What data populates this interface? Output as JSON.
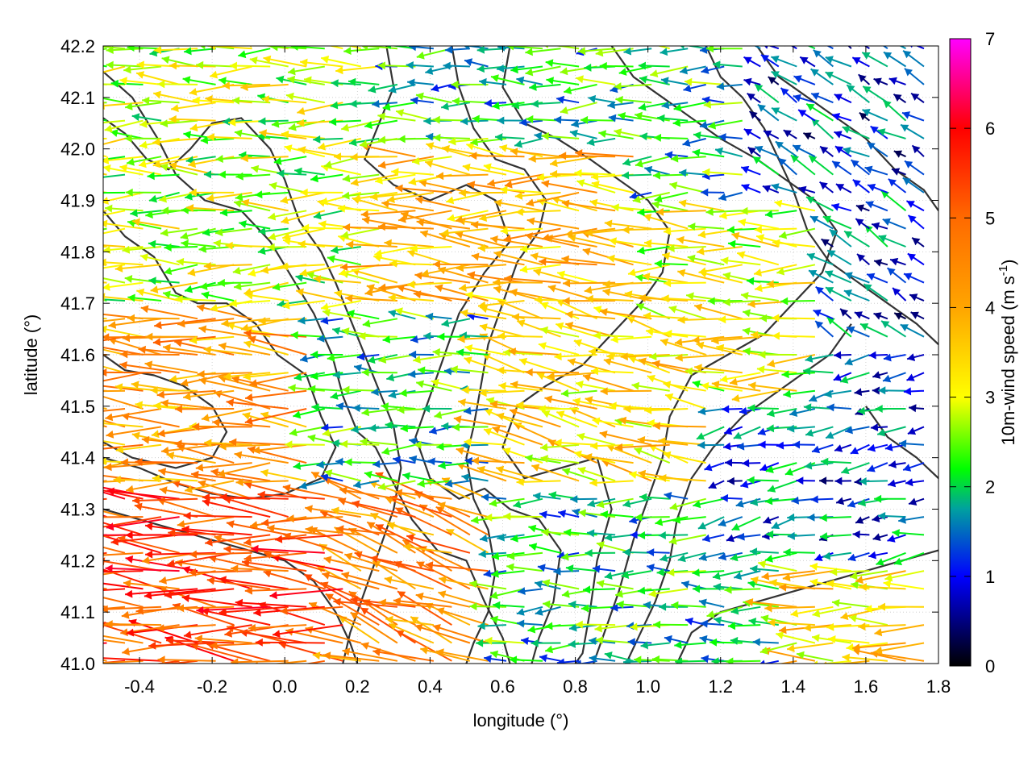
{
  "chart_data": {
    "type": "quiver",
    "title": "",
    "xlabel": "longitude (°)",
    "ylabel": "latitude (°)",
    "xlim": [
      -0.5,
      1.8
    ],
    "ylim": [
      41.0,
      42.2
    ],
    "xticks": [
      "-0.4",
      "-0.2",
      "0.0",
      "0.2",
      "0.4",
      "0.6",
      "0.8",
      "1.0",
      "1.2",
      "1.4",
      "1.6",
      "1.8"
    ],
    "xtick_values": [
      -0.4,
      -0.2,
      0.0,
      0.2,
      0.4,
      0.6,
      0.8,
      1.0,
      1.2,
      1.4,
      1.6,
      1.8
    ],
    "yticks": [
      "41.0",
      "41.1",
      "41.2",
      "41.3",
      "41.4",
      "41.5",
      "41.6",
      "41.7",
      "41.8",
      "41.9",
      "42.0",
      "42.1",
      "42.2"
    ],
    "ytick_values": [
      41.0,
      41.1,
      41.2,
      41.3,
      41.4,
      41.5,
      41.6,
      41.7,
      41.8,
      41.9,
      42.0,
      42.1,
      42.2
    ],
    "grid": true,
    "colorbar": {
      "label_main": "10m-wind speed (m s",
      "label_exp": "-1",
      "label_close": ")",
      "range": [
        0,
        7
      ],
      "ticks": [
        "0",
        "1",
        "2",
        "3",
        "4",
        "5",
        "6",
        "7"
      ],
      "tick_values": [
        0,
        1,
        2,
        3,
        4,
        5,
        6,
        7
      ],
      "colormap": [
        {
          "v": 0,
          "color": "#000000"
        },
        {
          "v": 1,
          "color": "#0000ff"
        },
        {
          "v": 1.75,
          "color": "#00a0a0"
        },
        {
          "v": 2.2,
          "color": "#00ff00"
        },
        {
          "v": 3,
          "color": "#ffff00"
        },
        {
          "v": 4,
          "color": "#ffa500"
        },
        {
          "v": 5,
          "color": "#ff6a00"
        },
        {
          "v": 6,
          "color": "#ff0000"
        },
        {
          "v": 7,
          "color": "#ff00ff"
        }
      ]
    },
    "contours": [
      {
        "name": "contour-1",
        "points": [
          [
            -0.5,
            42.15
          ],
          [
            -0.42,
            42.1
          ],
          [
            -0.35,
            42.02
          ],
          [
            -0.3,
            41.95
          ],
          [
            -0.22,
            41.9
          ],
          [
            -0.12,
            41.88
          ],
          [
            -0.04,
            41.82
          ],
          [
            0.02,
            41.75
          ],
          [
            0.08,
            41.68
          ],
          [
            0.13,
            41.6
          ],
          [
            0.16,
            41.52
          ],
          [
            0.2,
            41.45
          ],
          [
            0.25,
            41.42
          ],
          [
            0.3,
            41.35
          ],
          [
            0.35,
            41.28
          ],
          [
            0.42,
            41.22
          ],
          [
            0.5,
            41.2
          ],
          [
            0.55,
            41.12
          ],
          [
            0.6,
            41.05
          ],
          [
            0.62,
            41.0
          ]
        ]
      },
      {
        "name": "contour-2",
        "points": [
          [
            -0.5,
            41.88
          ],
          [
            -0.44,
            41.83
          ],
          [
            -0.36,
            41.79
          ],
          [
            -0.3,
            41.72
          ],
          [
            -0.24,
            41.7
          ],
          [
            -0.16,
            41.7
          ],
          [
            -0.08,
            41.66
          ],
          [
            -0.02,
            41.6
          ],
          [
            0.06,
            41.56
          ],
          [
            0.1,
            41.48
          ],
          [
            0.14,
            41.42
          ],
          [
            0.1,
            41.36
          ],
          [
            0.0,
            41.33
          ],
          [
            -0.1,
            41.32
          ],
          [
            -0.2,
            41.33
          ],
          [
            -0.3,
            41.35
          ],
          [
            -0.4,
            41.38
          ],
          [
            -0.5,
            41.4
          ]
        ]
      },
      {
        "name": "contour-3",
        "points": [
          [
            -0.5,
            41.6
          ],
          [
            -0.44,
            41.57
          ],
          [
            -0.36,
            41.56
          ],
          [
            -0.28,
            41.54
          ],
          [
            -0.2,
            41.5
          ],
          [
            -0.16,
            41.45
          ],
          [
            -0.2,
            41.4
          ],
          [
            -0.3,
            41.38
          ],
          [
            -0.42,
            41.4
          ],
          [
            -0.5,
            41.43
          ]
        ]
      },
      {
        "name": "contour-4",
        "points": [
          [
            0.28,
            42.2
          ],
          [
            0.3,
            42.12
          ],
          [
            0.26,
            42.05
          ],
          [
            0.22,
            41.98
          ],
          [
            0.3,
            41.93
          ],
          [
            0.4,
            41.9
          ],
          [
            0.5,
            41.93
          ],
          [
            0.58,
            41.9
          ],
          [
            0.62,
            41.82
          ],
          [
            0.55,
            41.76
          ],
          [
            0.48,
            41.68
          ],
          [
            0.44,
            41.6
          ],
          [
            0.4,
            41.52
          ],
          [
            0.36,
            41.44
          ],
          [
            0.4,
            41.36
          ],
          [
            0.48,
            41.32
          ],
          [
            0.55,
            41.34
          ],
          [
            0.62,
            41.3
          ],
          [
            0.7,
            41.28
          ],
          [
            0.76,
            41.22
          ],
          [
            0.74,
            41.12
          ],
          [
            0.7,
            41.05
          ],
          [
            0.68,
            41.0
          ]
        ]
      },
      {
        "name": "contour-5",
        "points": [
          [
            0.62,
            42.2
          ],
          [
            0.6,
            42.12
          ],
          [
            0.66,
            42.05
          ],
          [
            0.75,
            42.02
          ],
          [
            0.84,
            41.98
          ],
          [
            0.92,
            41.94
          ],
          [
            1.0,
            41.9
          ],
          [
            1.06,
            41.84
          ],
          [
            1.04,
            41.76
          ],
          [
            0.98,
            41.7
          ],
          [
            0.9,
            41.64
          ],
          [
            0.82,
            41.58
          ],
          [
            0.72,
            41.54
          ],
          [
            0.64,
            41.5
          ],
          [
            0.6,
            41.42
          ],
          [
            0.66,
            41.36
          ],
          [
            0.76,
            41.38
          ],
          [
            0.86,
            41.4
          ],
          [
            0.9,
            41.3
          ],
          [
            0.86,
            41.2
          ],
          [
            0.84,
            41.1
          ],
          [
            0.82,
            41.02
          ],
          [
            0.8,
            41.0
          ]
        ]
      },
      {
        "name": "contour-6",
        "points": [
          [
            0.9,
            42.2
          ],
          [
            0.96,
            42.14
          ],
          [
            1.04,
            42.1
          ],
          [
            1.12,
            42.06
          ],
          [
            1.2,
            42.02
          ],
          [
            1.3,
            41.98
          ],
          [
            1.38,
            41.94
          ],
          [
            1.46,
            41.9
          ],
          [
            1.52,
            41.84
          ],
          [
            1.48,
            41.76
          ],
          [
            1.4,
            41.7
          ],
          [
            1.32,
            41.64
          ],
          [
            1.22,
            41.6
          ],
          [
            1.12,
            41.56
          ],
          [
            1.06,
            41.48
          ],
          [
            1.04,
            41.4
          ],
          [
            1.0,
            41.32
          ],
          [
            0.96,
            41.24
          ],
          [
            0.92,
            41.14
          ],
          [
            0.88,
            41.06
          ],
          [
            0.85,
            41.0
          ]
        ]
      },
      {
        "name": "contour-7",
        "points": [
          [
            1.3,
            42.2
          ],
          [
            1.36,
            42.14
          ],
          [
            1.44,
            42.1
          ],
          [
            1.52,
            42.06
          ],
          [
            1.6,
            42.02
          ],
          [
            1.68,
            41.96
          ],
          [
            1.76,
            41.92
          ],
          [
            1.8,
            41.88
          ]
        ]
      },
      {
        "name": "contour-8",
        "points": [
          [
            1.6,
            41.5
          ],
          [
            1.66,
            41.44
          ],
          [
            1.74,
            41.4
          ],
          [
            1.8,
            41.36
          ]
        ]
      },
      {
        "name": "contour-9",
        "points": [
          [
            1.08,
            41.0
          ],
          [
            1.12,
            41.06
          ],
          [
            1.2,
            41.1
          ],
          [
            1.3,
            41.12
          ],
          [
            1.4,
            41.14
          ],
          [
            1.5,
            41.16
          ],
          [
            1.6,
            41.18
          ],
          [
            1.7,
            41.2
          ],
          [
            1.8,
            41.22
          ]
        ]
      },
      {
        "name": "contour-10",
        "points": [
          [
            -0.5,
            42.06
          ],
          [
            -0.44,
            42.03
          ],
          [
            -0.38,
            41.98
          ],
          [
            -0.32,
            41.96
          ],
          [
            -0.26,
            42.0
          ],
          [
            -0.2,
            42.05
          ],
          [
            -0.12,
            42.06
          ],
          [
            -0.04,
            42.0
          ],
          [
            0.0,
            41.94
          ],
          [
            0.04,
            41.86
          ],
          [
            0.1,
            41.8
          ],
          [
            0.14,
            41.74
          ],
          [
            0.18,
            41.67
          ],
          [
            0.22,
            41.6
          ],
          [
            0.26,
            41.53
          ],
          [
            0.3,
            41.46
          ],
          [
            0.32,
            41.38
          ],
          [
            0.3,
            41.3
          ],
          [
            0.26,
            41.22
          ],
          [
            0.22,
            41.14
          ],
          [
            0.18,
            41.06
          ],
          [
            0.16,
            41.0
          ]
        ]
      },
      {
        "name": "contour-11",
        "points": [
          [
            0.46,
            42.2
          ],
          [
            0.48,
            42.12
          ],
          [
            0.52,
            42.04
          ],
          [
            0.58,
            41.98
          ],
          [
            0.66,
            41.96
          ],
          [
            0.72,
            41.9
          ],
          [
            0.7,
            41.84
          ],
          [
            0.64,
            41.78
          ],
          [
            0.6,
            41.7
          ],
          [
            0.56,
            41.62
          ],
          [
            0.54,
            41.54
          ],
          [
            0.52,
            41.46
          ],
          [
            0.5,
            41.4
          ],
          [
            0.52,
            41.32
          ],
          [
            0.56,
            41.26
          ],
          [
            0.58,
            41.18
          ],
          [
            0.56,
            41.1
          ],
          [
            0.52,
            41.04
          ],
          [
            0.5,
            41.0
          ]
        ]
      },
      {
        "name": "contour-12",
        "points": [
          [
            -0.5,
            41.3
          ],
          [
            -0.4,
            41.28
          ],
          [
            -0.3,
            41.26
          ],
          [
            -0.2,
            41.24
          ],
          [
            -0.1,
            41.22
          ],
          [
            0.0,
            41.2
          ],
          [
            0.08,
            41.16
          ],
          [
            0.14,
            41.1
          ],
          [
            0.18,
            41.04
          ],
          [
            0.2,
            41.0
          ]
        ]
      },
      {
        "name": "contour-13",
        "points": [
          [
            1.16,
            42.2
          ],
          [
            1.2,
            42.14
          ],
          [
            1.26,
            42.1
          ],
          [
            1.32,
            42.04
          ],
          [
            1.36,
            41.98
          ],
          [
            1.4,
            41.92
          ],
          [
            1.44,
            41.84
          ],
          [
            1.5,
            41.78
          ],
          [
            1.58,
            41.74
          ],
          [
            1.66,
            41.7
          ],
          [
            1.74,
            41.66
          ],
          [
            1.8,
            41.62
          ]
        ]
      },
      {
        "name": "contour-14",
        "points": [
          [
            0.94,
            41.0
          ],
          [
            0.98,
            41.06
          ],
          [
            1.02,
            41.12
          ],
          [
            1.06,
            41.2
          ],
          [
            1.08,
            41.28
          ],
          [
            1.12,
            41.36
          ],
          [
            1.18,
            41.42
          ],
          [
            1.26,
            41.48
          ],
          [
            1.34,
            41.52
          ],
          [
            1.42,
            41.56
          ],
          [
            1.5,
            41.6
          ],
          [
            1.56,
            41.66
          ]
        ]
      }
    ],
    "wind_field": {
      "description": "Dense gridded 10m-wind vectors (predominantly westward) colored by speed; strongest (5–7 m/s) in the southwest, weakest (<1.5 m/s) in the east",
      "grid_lon_step": 0.05,
      "grid_lat_step": 0.035,
      "regions": [
        {
          "lon": [
            -0.5,
            0.2
          ],
          "lat": [
            41.0,
            41.35
          ],
          "speed_mean": 5.3,
          "direction_deg_from_east": 176
        },
        {
          "lon": [
            -0.5,
            0.1
          ],
          "lat": [
            41.35,
            41.7
          ],
          "speed_mean": 4.2,
          "direction_deg_from_east": 178
        },
        {
          "lon": [
            -0.5,
            0.3
          ],
          "lat": [
            41.7,
            42.2
          ],
          "speed_mean": 2.8,
          "direction_deg_from_east": 180
        },
        {
          "lon": [
            0.2,
            0.6
          ],
          "lat": [
            41.0,
            41.35
          ],
          "speed_mean": 4.5,
          "direction_deg_from_east": 160
        },
        {
          "lon": [
            0.3,
            1.0
          ],
          "lat": [
            41.7,
            42.0
          ],
          "speed_mean": 3.8,
          "direction_deg_from_east": 178
        },
        {
          "lon": [
            0.6,
            1.2
          ],
          "lat": [
            41.35,
            41.7
          ],
          "speed_mean": 3.4,
          "direction_deg_from_east": 170
        },
        {
          "lon": [
            1.0,
            1.5
          ],
          "lat": [
            41.5,
            41.9
          ],
          "speed_mean": 3.0,
          "direction_deg_from_east": 178
        },
        {
          "lon": [
            1.4,
            1.8
          ],
          "lat": [
            41.0,
            41.2
          ],
          "speed_mean": 3.4,
          "direction_deg_from_east": 180
        },
        {
          "lon": [
            1.2,
            1.8
          ],
          "lat": [
            41.2,
            41.6
          ],
          "speed_mean": 1.3,
          "direction_deg_from_east": 190
        },
        {
          "lon": [
            1.3,
            1.8
          ],
          "lat": [
            41.6,
            42.2
          ],
          "speed_mean": 1.2,
          "direction_deg_from_east": 150
        }
      ]
    }
  }
}
